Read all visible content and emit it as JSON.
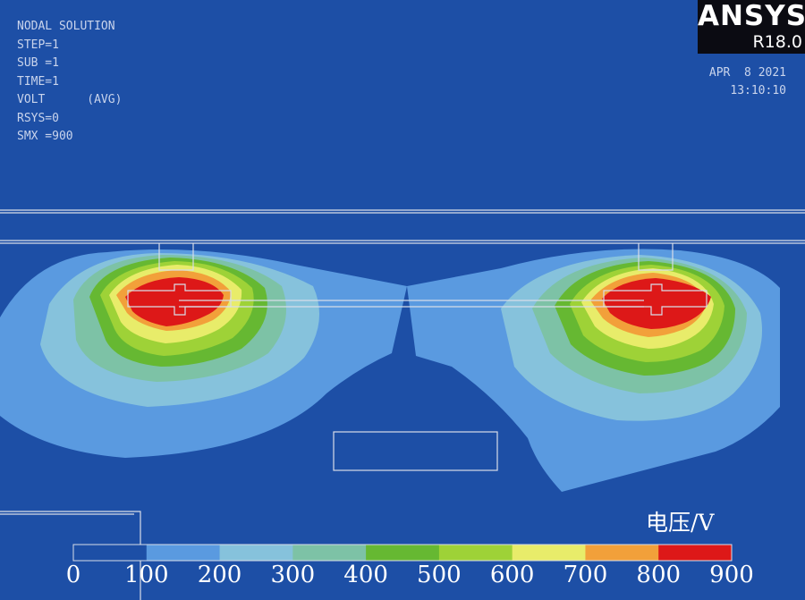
{
  "solution_info": {
    "title": "NODAL SOLUTION",
    "lines": [
      "STEP=1",
      "SUB =1",
      "TIME=1",
      "VOLT      (AVG)",
      "RSYS=0",
      "SMX =900"
    ]
  },
  "logo": {
    "brand": "ANSYS",
    "version": "R18.0"
  },
  "timestamp": {
    "date": "APR  8 2021",
    "time": "13:10:10"
  },
  "legend": {
    "unit": "电压/V",
    "ticks": [
      "0",
      "100",
      "200",
      "300",
      "400",
      "500",
      "600",
      "700",
      "800",
      "900"
    ],
    "colors": [
      "#1d4fa6",
      "#5a9ae0",
      "#86c2dc",
      "#7dc2a6",
      "#66b832",
      "#9ed237",
      "#e8ec6a",
      "#f2a03a",
      "#dd1818"
    ]
  },
  "colors": {
    "background": "#1d4fa6",
    "outline": "#d8dde8"
  }
}
